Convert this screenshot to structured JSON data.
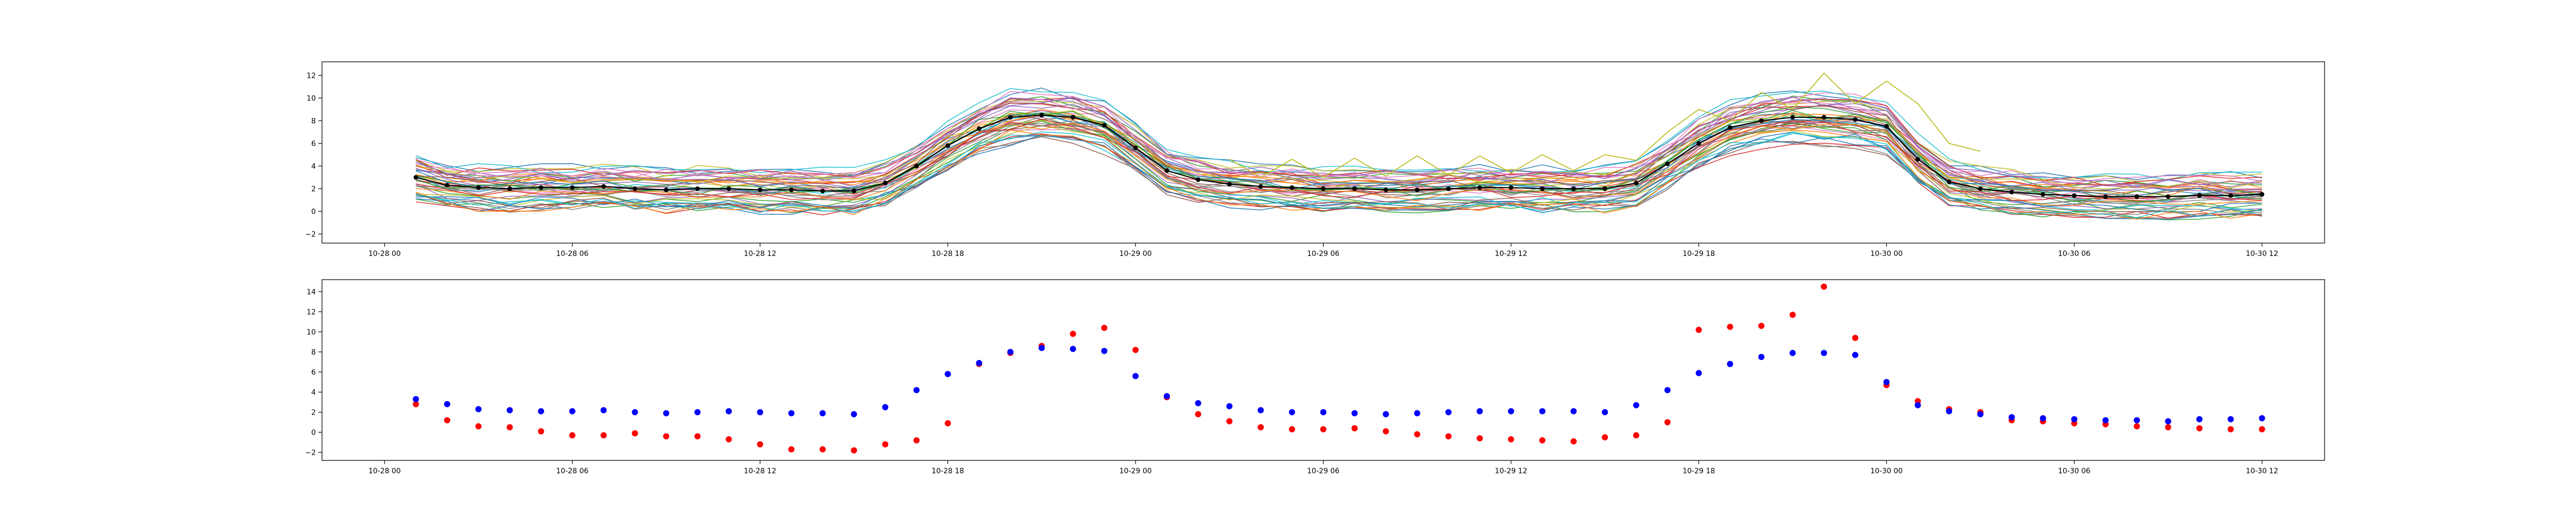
{
  "chart_data": [
    {
      "type": "line",
      "title": "",
      "xlabel": "",
      "ylabel": "",
      "x_range": [
        "10-27 22:00",
        "10-30 14:00"
      ],
      "ylim": [
        -2.8,
        13.2
      ],
      "x_ticks": [
        "10-28 00",
        "10-28 06",
        "10-28 12",
        "10-28 18",
        "10-29 00",
        "10-29 06",
        "10-29 12",
        "10-29 18",
        "10-30 00",
        "10-30 06",
        "10-30 12"
      ],
      "y_ticks": [
        -2,
        0,
        2,
        4,
        6,
        8,
        10,
        12
      ],
      "grid": false,
      "legend": "none",
      "x_hours": [
        1,
        2,
        3,
        4,
        5,
        6,
        7,
        8,
        9,
        10,
        11,
        12,
        13,
        14,
        15,
        16,
        17,
        18,
        19,
        20,
        21,
        22,
        23,
        24,
        25,
        26,
        27,
        28,
        29,
        30,
        31,
        32,
        33,
        34,
        35,
        36,
        37,
        38,
        39,
        40,
        41,
        42,
        43,
        44,
        45,
        46,
        47,
        48,
        49,
        50,
        51,
        52,
        53,
        54,
        55,
        56,
        57,
        58,
        59,
        60
      ],
      "mean_series": {
        "name": "",
        "color": "#000000",
        "values": [
          3.0,
          2.3,
          2.1,
          2.0,
          2.1,
          2.1,
          2.2,
          2.0,
          1.9,
          2.0,
          2.0,
          1.9,
          1.9,
          1.8,
          1.8,
          2.5,
          4.0,
          5.8,
          7.3,
          8.3,
          8.5,
          8.3,
          7.6,
          5.6,
          3.6,
          2.8,
          2.4,
          2.2,
          2.1,
          2.0,
          2.0,
          1.9,
          1.9,
          2.0,
          2.1,
          2.1,
          2.0,
          2.0,
          2.0,
          2.5,
          4.2,
          6.0,
          7.4,
          8.0,
          8.3,
          8.3,
          8.1,
          7.5,
          4.6,
          2.6,
          2.0,
          1.7,
          1.5,
          1.4,
          1.3,
          1.3,
          1.3,
          1.4,
          1.4,
          1.5
        ]
      },
      "spike_series": {
        "name": "",
        "color": "#bcbd22",
        "values": [
          null,
          null,
          null,
          null,
          null,
          null,
          null,
          null,
          null,
          null,
          null,
          null,
          null,
          null,
          null,
          null,
          null,
          null,
          null,
          null,
          null,
          null,
          null,
          null,
          null,
          null,
          4.6,
          3.0,
          4.6,
          3.0,
          4.7,
          3.1,
          4.9,
          3.2,
          4.9,
          3.4,
          5.0,
          3.6,
          5.0,
          4.5,
          7.0,
          9.0,
          8.0,
          10.5,
          9.0,
          12.2,
          9.5,
          11.5,
          9.5,
          6.0,
          5.3,
          null,
          null,
          null,
          null,
          null,
          null,
          null,
          null,
          null
        ]
      },
      "ensemble": {
        "member_count": 45,
        "spread": "members within roughly ±2.5 of the mean series",
        "palette": [
          "#1f77b4",
          "#ff7f0e",
          "#2ca02c",
          "#d62728",
          "#9467bd",
          "#8c564b",
          "#e377c2",
          "#7f7f7f",
          "#bcbd22",
          "#17becf"
        ]
      }
    },
    {
      "type": "scatter",
      "title": "",
      "xlabel": "",
      "ylabel": "",
      "x_range": [
        "10-27 22:00",
        "10-30 14:00"
      ],
      "ylim": [
        -2.8,
        15.2
      ],
      "x_ticks": [
        "10-28 00",
        "10-28 06",
        "10-28 12",
        "10-28 18",
        "10-29 00",
        "10-29 06",
        "10-29 12",
        "10-29 18",
        "10-30 00",
        "10-30 06",
        "10-30 12"
      ],
      "y_ticks": [
        -2,
        0,
        2,
        4,
        6,
        8,
        10,
        12,
        14
      ],
      "grid": false,
      "legend": "none",
      "x_hours": [
        1,
        2,
        3,
        4,
        5,
        6,
        7,
        8,
        9,
        10,
        11,
        12,
        13,
        14,
        15,
        16,
        17,
        18,
        19,
        20,
        21,
        22,
        23,
        24,
        25,
        26,
        27,
        28,
        29,
        30,
        31,
        32,
        33,
        34,
        35,
        36,
        37,
        38,
        39,
        40,
        41,
        42,
        43,
        44,
        45,
        46,
        47,
        48,
        49,
        50,
        51,
        52,
        53,
        54,
        55,
        56,
        57,
        58,
        59,
        60
      ],
      "series": [
        {
          "name": "",
          "color": "#ff0000",
          "values": [
            2.8,
            1.2,
            0.6,
            0.5,
            0.1,
            -0.3,
            -0.3,
            -0.1,
            -0.4,
            -0.4,
            -0.7,
            -1.2,
            -1.7,
            -1.7,
            -1.8,
            -1.2,
            -0.8,
            0.9,
            6.8,
            7.9,
            8.6,
            9.8,
            10.4,
            8.2,
            3.5,
            1.8,
            1.1,
            0.5,
            0.3,
            0.3,
            0.4,
            0.1,
            -0.2,
            -0.4,
            -0.6,
            -0.7,
            -0.8,
            -0.9,
            -0.5,
            -0.3,
            1.0,
            10.2,
            10.5,
            10.6,
            11.7,
            14.5,
            9.4,
            4.7,
            3.1,
            2.3,
            2.0,
            1.2,
            1.1,
            0.9,
            0.8,
            0.6,
            0.5,
            0.4,
            0.3,
            0.3
          ]
        },
        {
          "name": "",
          "color": "#0000ff",
          "values": [
            3.3,
            2.8,
            2.3,
            2.2,
            2.1,
            2.1,
            2.2,
            2.0,
            1.9,
            2.0,
            2.1,
            2.0,
            1.9,
            1.9,
            1.8,
            2.5,
            4.2,
            5.8,
            6.9,
            8.0,
            8.4,
            8.3,
            8.1,
            5.6,
            3.6,
            2.9,
            2.6,
            2.2,
            2.0,
            2.0,
            1.9,
            1.8,
            1.9,
            2.0,
            2.1,
            2.1,
            2.1,
            2.1,
            2.0,
            2.7,
            4.2,
            5.9,
            6.8,
            7.5,
            7.9,
            7.9,
            7.7,
            5.0,
            2.7,
            2.1,
            1.8,
            1.5,
            1.4,
            1.3,
            1.2,
            1.2,
            1.1,
            1.3,
            1.3,
            1.4
          ]
        }
      ]
    }
  ]
}
